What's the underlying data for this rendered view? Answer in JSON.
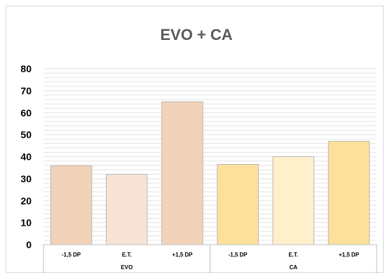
{
  "chart_data": {
    "type": "bar",
    "title": "EVO + CA",
    "xlabel": "",
    "ylabel": "",
    "ylim": [
      0,
      80
    ],
    "yticks": [
      0,
      10,
      20,
      30,
      40,
      50,
      60,
      70,
      80
    ],
    "grid": true,
    "legend": "none",
    "groups": [
      {
        "label": "EVO",
        "bars": [
          {
            "label": "-1,5 DP",
            "value": 36,
            "color": "#f2d2b8"
          },
          {
            "label": "E.T.",
            "value": 32,
            "color": "#f7e4d6"
          },
          {
            "label": "+1,5 DP",
            "value": 65,
            "color": "#f2d2b8"
          }
        ]
      },
      {
        "label": "CA",
        "bars": [
          {
            "label": "-1,5 DP",
            "value": 36.5,
            "color": "#fde09a"
          },
          {
            "label": "E.T.",
            "value": 40,
            "color": "#fff0cc"
          },
          {
            "label": "+1,5 DP",
            "value": 47,
            "color": "#fde09a"
          }
        ]
      }
    ]
  }
}
